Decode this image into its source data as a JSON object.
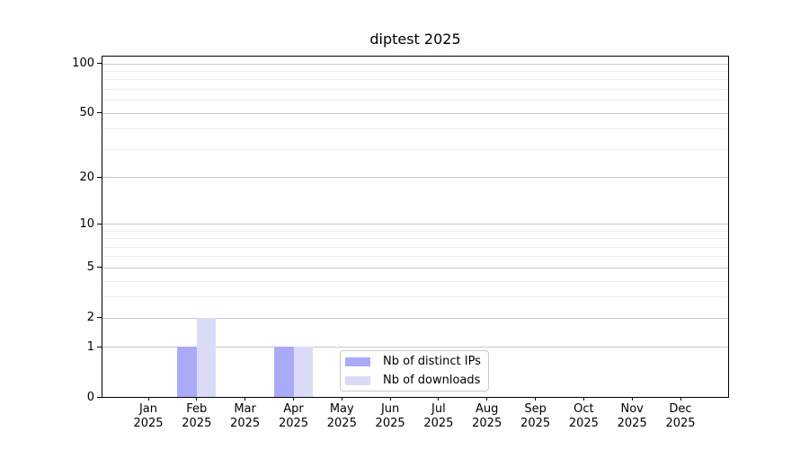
{
  "chart_data": {
    "type": "bar",
    "title": "diptest 2025",
    "categories": [
      "Jan",
      "Feb",
      "Mar",
      "Apr",
      "May",
      "Jun",
      "Jul",
      "Aug",
      "Sep",
      "Oct",
      "Nov",
      "Dec"
    ],
    "x_tick_year": "2025",
    "series": [
      {
        "name": "Nb of distinct IPs",
        "color": "#aaaaf8",
        "values": [
          0,
          1,
          0,
          1,
          0,
          0,
          0,
          0,
          0,
          0,
          0,
          0
        ]
      },
      {
        "name": "Nb of downloads",
        "color": "#dbdbf8",
        "values": [
          0,
          2,
          0,
          1,
          0,
          0,
          0,
          0,
          0,
          0,
          0,
          0
        ]
      }
    ],
    "y_axis": {
      "scale": "log1p",
      "ticks": [
        0,
        1,
        2,
        5,
        10,
        20,
        50,
        100
      ],
      "minor_gridlines": [
        3,
        4,
        6,
        7,
        8,
        9,
        30,
        40,
        60,
        70,
        80,
        90
      ],
      "ylim": [
        0,
        110
      ]
    },
    "grid": {
      "orientation": "horizontal",
      "major_color": "#c8c8c8",
      "minor_color": "#ececec"
    },
    "legend": {
      "position": "inside-bottom-center"
    }
  }
}
